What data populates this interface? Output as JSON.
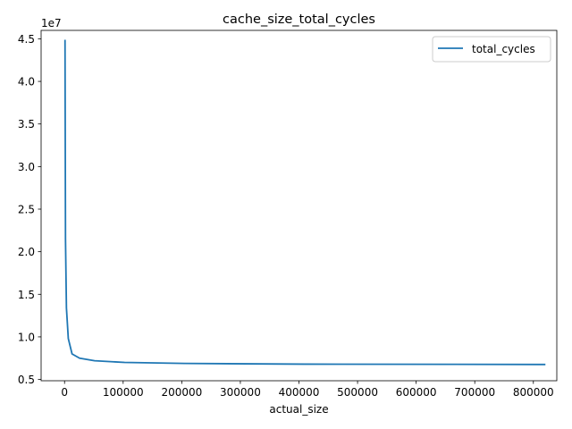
{
  "chart_data": {
    "type": "line",
    "title": "cache_size_total_cycles",
    "xlabel": "actual_size",
    "ylabel": "",
    "y_offset_label": "1e7",
    "y_multiplier": 10000000,
    "xlim": [
      -40000,
      840000
    ],
    "ylim": [
      4850000,
      45990000
    ],
    "x_ticks": [
      0,
      100000,
      200000,
      300000,
      400000,
      500000,
      600000,
      700000,
      800000
    ],
    "x_tick_labels": [
      "0",
      "100000",
      "200000",
      "300000",
      "400000",
      "500000",
      "600000",
      "700000",
      "800000"
    ],
    "y_ticks": [
      5000000,
      10000000,
      15000000,
      20000000,
      25000000,
      30000000,
      35000000,
      40000000,
      45000000
    ],
    "y_tick_labels": [
      "0.5",
      "1.0",
      "1.5",
      "2.0",
      "2.5",
      "3.0",
      "3.5",
      "4.0",
      "4.5"
    ],
    "grid": false,
    "legend": {
      "position": "top-right",
      "entries": [
        "total_cycles"
      ]
    },
    "series": [
      {
        "name": "total_cycles",
        "color": "#1f77b4",
        "x": [
          800,
          1600,
          3200,
          6400,
          12800,
          25600,
          51200,
          102400,
          204800,
          409600,
          819200
        ],
        "y": [
          44800000,
          21500000,
          13400000,
          9800000,
          8000000,
          7500000,
          7200000,
          7000000,
          6880000,
          6800000,
          6760000
        ]
      }
    ]
  }
}
